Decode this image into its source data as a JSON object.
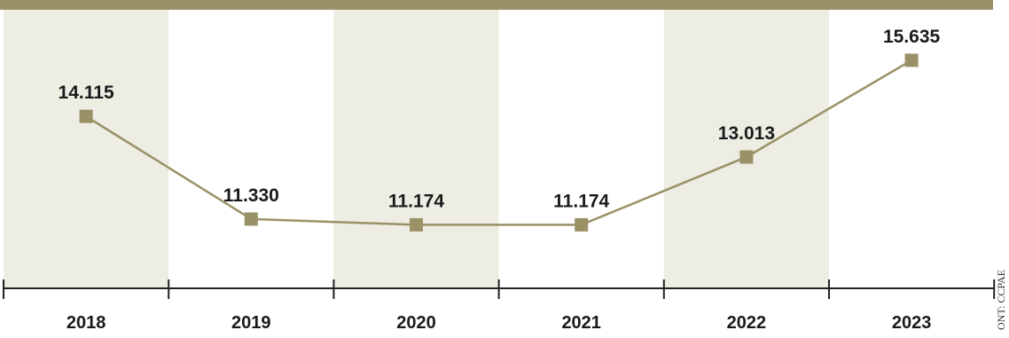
{
  "chart_data": {
    "type": "line",
    "categories": [
      "2018",
      "2019",
      "2020",
      "2021",
      "2022",
      "2023"
    ],
    "series": [
      {
        "values": [
          14.115,
          11.33,
          11.174,
          11.174,
          13.013,
          15.635
        ]
      }
    ],
    "data_labels": [
      "14.115",
      "11.330",
      "11.174",
      "11.174",
      "13.013",
      "15.635"
    ],
    "ylim": [
      9.5,
      16.5
    ],
    "grid": false,
    "source_text": "ONT: CCPAE",
    "colors": {
      "header_bar": "#9a9166",
      "line": "#9a9166",
      "marker": "#9a9166",
      "band": "#eeede4",
      "axis": "#222222",
      "text": "#1a1a1a"
    }
  }
}
